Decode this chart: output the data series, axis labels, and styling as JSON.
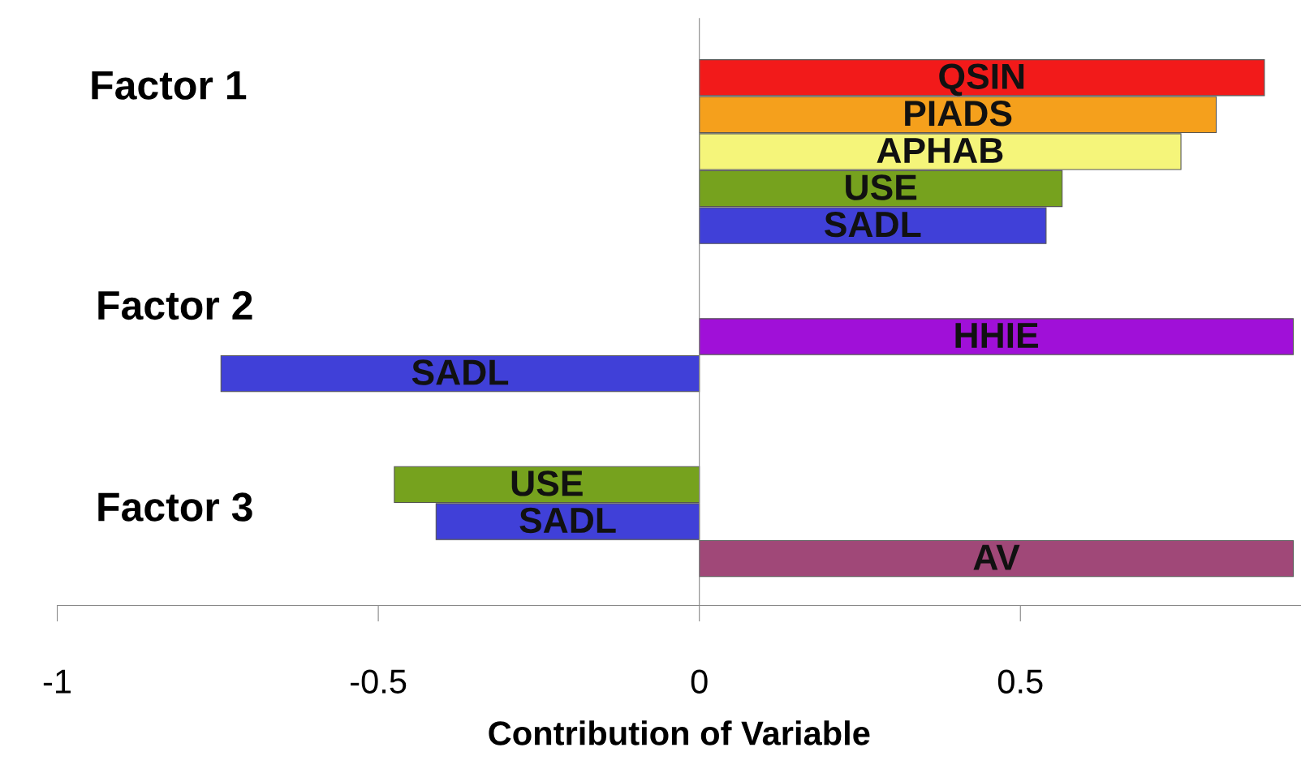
{
  "chart_data": {
    "type": "bar",
    "orientation": "horizontal",
    "xlabel": "Contribution of Variable",
    "categories": [
      "QSIN",
      "PIADS",
      "APHAB",
      "USE",
      "SADL",
      null,
      null,
      "HHIE",
      "SADL",
      null,
      null,
      "USE",
      "SADL",
      "AV"
    ],
    "values": [
      0.88,
      0.805,
      0.75,
      0.565,
      0.54,
      null,
      null,
      0.925,
      -0.745,
      null,
      null,
      -0.475,
      -0.41,
      0.925
    ],
    "colors": [
      "#f21a1a",
      "#f5a01c",
      "#f5f57a",
      "#76a21e",
      "#4040d8",
      null,
      null,
      "#a010d8",
      "#4040d8",
      null,
      null,
      "#76a21e",
      "#4040d8",
      "#a04878"
    ],
    "annotations": [
      "Factor 1",
      "Factor 2",
      "Factor 3"
    ],
    "xlim": [
      -1,
      0.937
    ],
    "xticks": [
      -1,
      -0.5,
      0,
      0.5
    ],
    "tick_labels": "x",
    "legend": false
  }
}
